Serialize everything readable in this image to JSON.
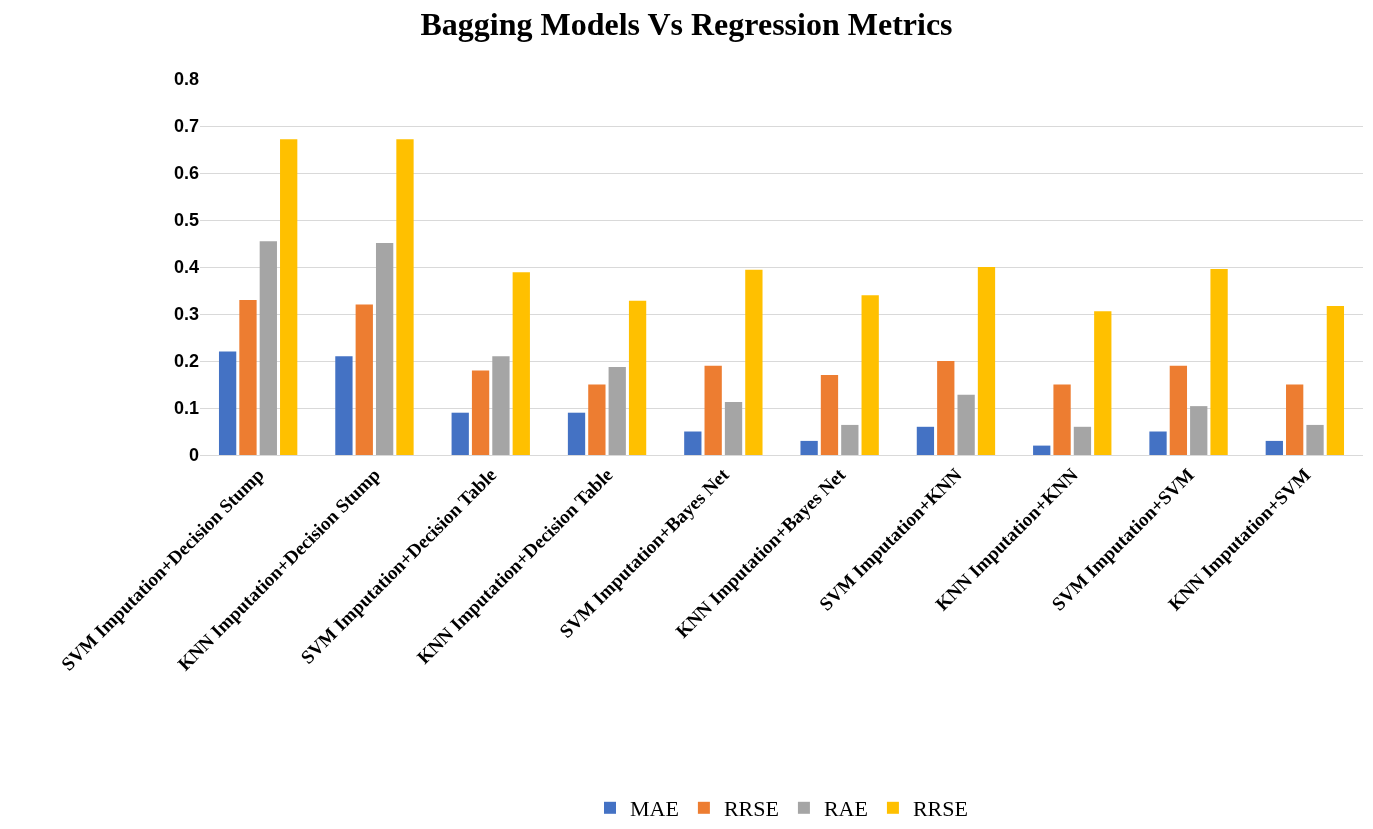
{
  "chart_data": {
    "type": "bar",
    "title": "Bagging Models Vs Regression Metrics",
    "categories": [
      "SVM Imputation+Decision Stump",
      "KNN Imputation+Decision Stump",
      "SVM Imputation+Decision Table",
      "KNN Imputation+Decision Table",
      "SVM Imputation+Bayes Net",
      "KNN Imputation+Bayes Net",
      "SVM Imputation+KNN",
      "KNN Imputation+KNN",
      "SVM Imputation+SVM",
      "KNN Imputation+SVM"
    ],
    "series": [
      {
        "name": "MAE",
        "color": "#4472c4",
        "values": [
          0.22,
          0.21,
          0.09,
          0.09,
          0.05,
          0.03,
          0.06,
          0.02,
          0.05,
          0.03
        ]
      },
      {
        "name": "RRSE",
        "color": "#ed7d31",
        "values": [
          0.33,
          0.32,
          0.18,
          0.15,
          0.19,
          0.17,
          0.2,
          0.15,
          0.19,
          0.15
        ]
      },
      {
        "name": "RAE",
        "color": "#a5a5a5",
        "values": [
          0.455,
          0.451,
          0.21,
          0.187,
          0.113,
          0.064,
          0.128,
          0.06,
          0.104,
          0.064
        ]
      },
      {
        "name": "RRSE",
        "color": "#ffc000",
        "values": [
          0.672,
          0.672,
          0.389,
          0.328,
          0.394,
          0.34,
          0.4,
          0.306,
          0.396,
          0.317
        ]
      }
    ],
    "ylim": [
      0,
      0.8
    ],
    "yticks": [
      0,
      0.1,
      0.2,
      0.3,
      0.4,
      0.5,
      0.6,
      0.7,
      0.8
    ],
    "grid": "y",
    "legend": "bottom"
  }
}
